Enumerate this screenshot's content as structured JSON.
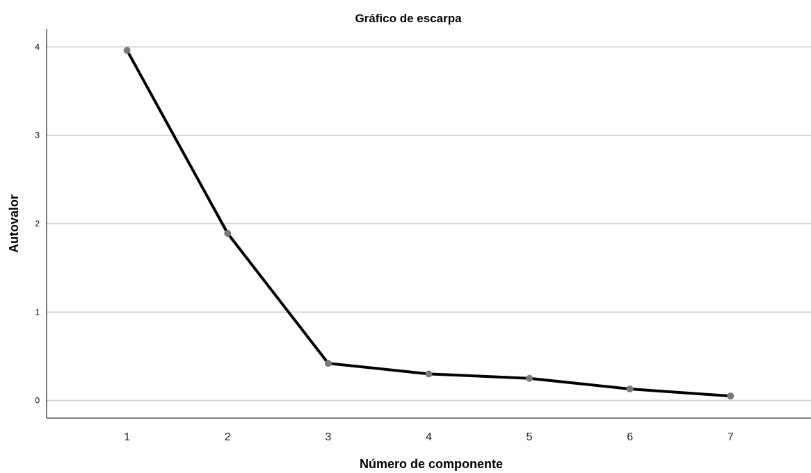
{
  "chart_data": {
    "type": "line",
    "title": "Gráfico de escarpa",
    "xlabel": "Número de componente",
    "ylabel": "Autovalor",
    "x": [
      1,
      2,
      3,
      4,
      5,
      6,
      7
    ],
    "series": [
      {
        "values": [
          3.96,
          1.89,
          0.42,
          0.3,
          0.25,
          0.13,
          0.05
        ]
      }
    ],
    "yticks": [
      0,
      1,
      2,
      3,
      4
    ],
    "ylim": [
      -0.2,
      4.2
    ],
    "xlim": [
      0.2,
      7.8
    ],
    "grid": true,
    "colors": {
      "line": "#000000",
      "marker": "#7a7a7a",
      "grid": "#c8c8c8"
    }
  }
}
